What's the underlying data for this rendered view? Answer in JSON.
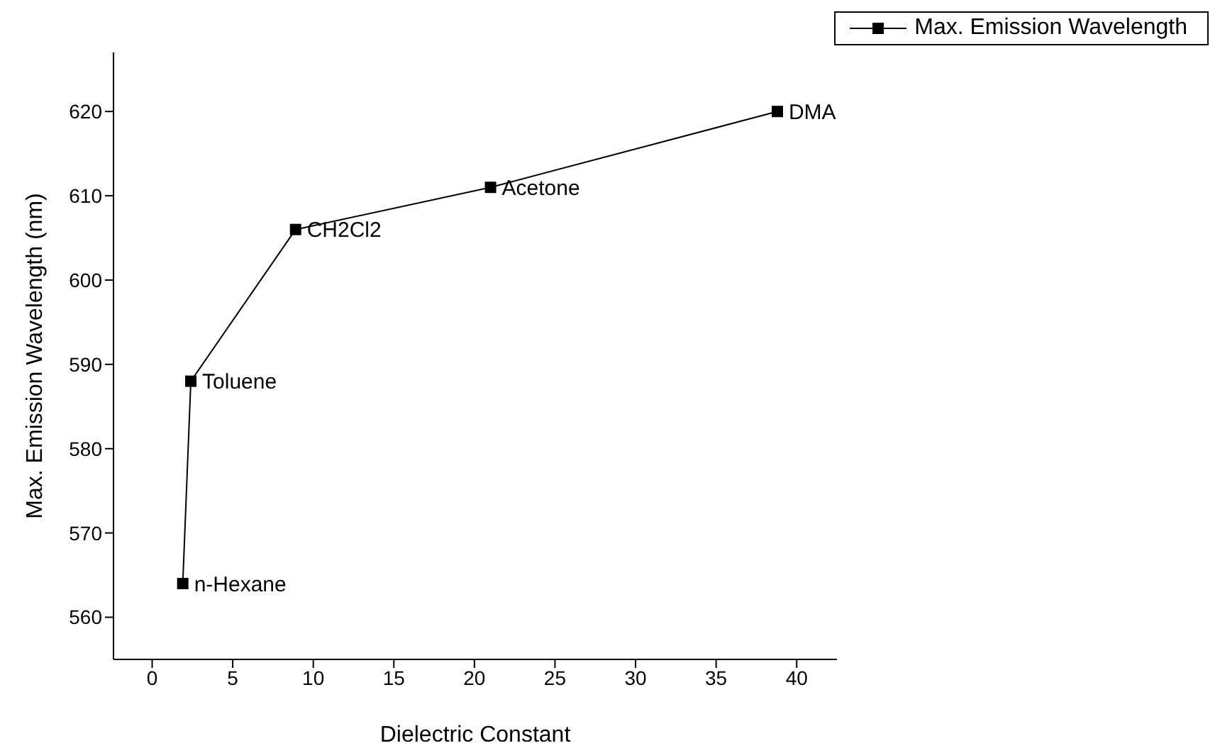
{
  "chart_data": {
    "type": "line",
    "xlabel": "Dielectric Constant",
    "ylabel": "Max. Emission Wavelength (nm)",
    "x": [
      1.9,
      2.4,
      8.9,
      21.0,
      38.8
    ],
    "series": [
      {
        "name": "Max. Emission Wavelength",
        "color": "#000000",
        "values": [
          564,
          588,
          606,
          611,
          620
        ]
      }
    ],
    "xlim": [
      -2.4,
      42.5
    ],
    "xticks": [
      0,
      5,
      10,
      15,
      20,
      25,
      30,
      35,
      40
    ],
    "ylim": [
      555,
      627
    ],
    "yticks": [
      560,
      570,
      580,
      590,
      600,
      610,
      620
    ],
    "marker": "square",
    "line_style": "solid",
    "grid": false,
    "legend": "top right",
    "annotations": [
      {
        "text": "n-Hexane",
        "x": 1.9,
        "y": 564
      },
      {
        "text": "Toluene",
        "x": 2.4,
        "y": 588
      },
      {
        "text": "CH2Cl2",
        "x": 8.9,
        "y": 606
      },
      {
        "text": "Acetone",
        "x": 21.0,
        "y": 611
      },
      {
        "text": "DMA",
        "x": 38.8,
        "y": 620
      }
    ]
  }
}
